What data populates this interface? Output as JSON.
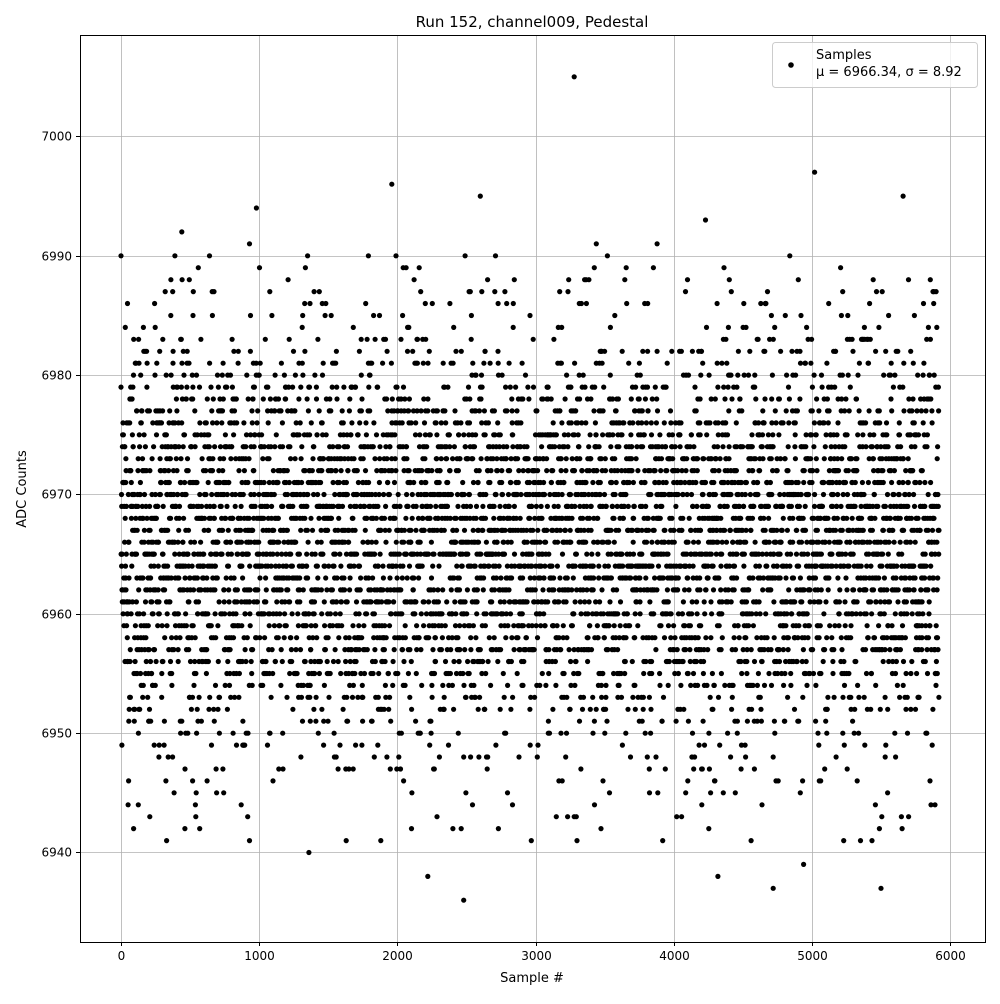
{
  "chart_data": {
    "type": "scatter",
    "title": "Run 152, channel009, Pedestal",
    "xlabel": "Sample #",
    "ylabel": "ADC Counts",
    "xlim": [
      -297,
      6253
    ],
    "ylim": [
      6932.5,
      7008.5
    ],
    "xticks": [
      0,
      1000,
      2000,
      3000,
      4000,
      5000,
      6000
    ],
    "yticks": [
      6940,
      6950,
      6960,
      6970,
      6980,
      6990,
      7000
    ],
    "grid": true,
    "legend": {
      "placement": "top-right",
      "entries": [
        {
          "label": "Samples",
          "stats": "μ = 6966.34, σ = 8.92"
        }
      ]
    },
    "series": [
      {
        "name": "Samples",
        "color": "#000000",
        "marker": "circle",
        "distribution": {
          "mean": 6966.34,
          "sigma": 8.92,
          "x_range": [
            0,
            5920
          ],
          "values": "integer"
        },
        "notable_points": [
          [
            3280,
            7005
          ],
          [
            5020,
            6997
          ],
          [
            1960,
            6996
          ],
          [
            2600,
            6995
          ],
          [
            5660,
            6995
          ],
          [
            980,
            6994
          ],
          [
            4230,
            6993
          ],
          [
            440,
            6992
          ],
          [
            930,
            6991
          ],
          [
            3440,
            6991
          ],
          [
            3880,
            6991
          ],
          [
            0,
            6990
          ],
          [
            390,
            6990
          ],
          [
            640,
            6990
          ],
          [
            1350,
            6990
          ],
          [
            1790,
            6990
          ],
          [
            1990,
            6990
          ],
          [
            2490,
            6990
          ],
          [
            2710,
            6990
          ],
          [
            3520,
            6990
          ],
          [
            4840,
            6990
          ],
          [
            2480,
            6936
          ],
          [
            5500,
            6937
          ],
          [
            4720,
            6937
          ],
          [
            2220,
            6938
          ],
          [
            4320,
            6938
          ],
          [
            4940,
            6939
          ],
          [
            1360,
            6940
          ],
          [
            330,
            6941
          ],
          [
            930,
            6941
          ],
          [
            1630,
            6941
          ],
          [
            1880,
            6941
          ],
          [
            3300,
            6941
          ],
          [
            4560,
            6941
          ],
          [
            5230,
            6941
          ]
        ]
      }
    ]
  }
}
